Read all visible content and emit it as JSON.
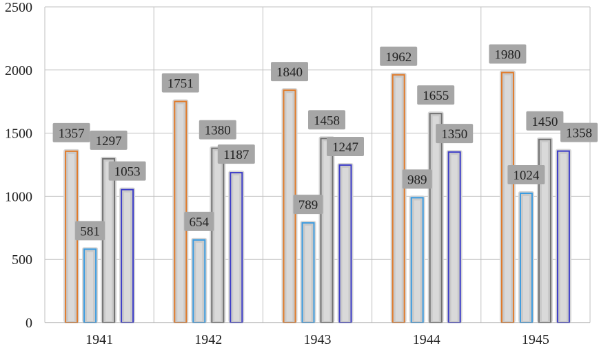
{
  "chart_data": {
    "type": "bar",
    "title": "",
    "xlabel": "",
    "ylabel": "",
    "ylim": [
      0,
      2500
    ],
    "yticks": [
      0,
      500,
      1000,
      1500,
      2000,
      2500
    ],
    "grid": true,
    "legend": "none",
    "categories": [
      "1941",
      "1942",
      "1943",
      "1944",
      "1945"
    ],
    "series": [
      {
        "values": [
          1357,
          1751,
          1840,
          1962,
          1980
        ],
        "color": "#E07B2A"
      },
      {
        "values": [
          581,
          654,
          789,
          989,
          1024
        ],
        "color": "#3A9BE0"
      },
      {
        "values": [
          1297,
          1380,
          1458,
          1655,
          1450
        ],
        "color": "#707070"
      },
      {
        "values": [
          1053,
          1187,
          1247,
          1350,
          1358
        ],
        "color": "#3C3CC8"
      }
    ],
    "data_labels": true,
    "label_background": "#A6A6A6"
  }
}
